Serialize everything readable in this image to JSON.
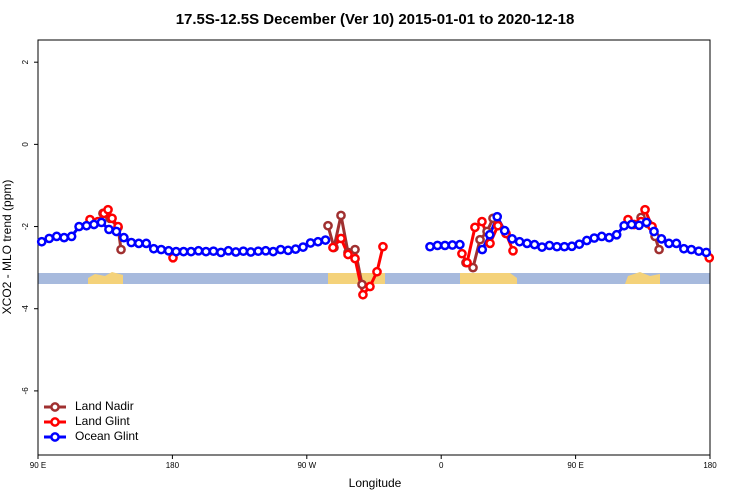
{
  "chart_data": {
    "type": "line",
    "title": "17.5S-12.5S December (Ver 10)   2015-01-01 to 2020-12-18",
    "xlabel": "Longitude",
    "ylabel": "XCO2 - MLO trend (ppm)",
    "xlim": [
      90,
      540
    ],
    "ylim": [
      -7.56,
      2.54
    ],
    "xticks": [
      {
        "value": 90,
        "label": "90 E"
      },
      {
        "value": 180,
        "label": "180"
      },
      {
        "value": 270,
        "label": "90 W"
      },
      {
        "value": 360,
        "label": "0"
      },
      {
        "value": 450,
        "label": "90 E"
      },
      {
        "value": 540,
        "label": "180"
      }
    ],
    "yticks": [
      2,
      0,
      -2,
      -4,
      -6
    ],
    "grid": false,
    "legend": "bottom-left",
    "series": [
      {
        "name": "Land Nadir",
        "color": "#a03030",
        "x": [
          133.5,
          138.2,
          143.6,
          145.6,
          null,
          284.2,
          288.2,
          292.9,
          297.6,
          302.3,
          307.0,
          null,
          376.6,
          381.3,
          386.0,
          390.7,
          394.7,
          null,
          493.8,
          498.5,
          503.2,
          505.9
        ],
        "values": [
          -1.68,
          -1.8,
          -2.02,
          -2.56,
          null,
          -1.98,
          -2.51,
          -1.73,
          -2.63,
          -2.56,
          -3.41,
          null,
          -2.88,
          -3.0,
          -2.32,
          -2.12,
          -1.8,
          null,
          -1.78,
          -1.93,
          -2.24,
          -2.56
        ]
      },
      {
        "name": "Land Glint",
        "color": "#ff0000",
        "x": [
          124.8,
          130.2,
          134.2,
          136.9,
          139.6,
          143.6,
          null,
          180.4,
          null,
          287.5,
          292.9,
          297.6,
          302.3,
          307.6,
          312.3,
          317.0,
          321.0,
          null,
          373.9,
          377.3,
          382.6,
          387.3,
          392.7,
          398.0,
          403.4,
          408.1,
          null,
          485.1,
          489.1,
          493.8,
          496.5,
          501.2,
          null,
          539.5
        ],
        "values": [
          -1.83,
          -1.88,
          -1.68,
          -1.59,
          -1.8,
          -2.0,
          null,
          -2.76,
          null,
          -2.51,
          -2.29,
          -2.68,
          -2.78,
          -3.66,
          -3.46,
          -3.1,
          -2.49,
          null,
          -2.66,
          -2.88,
          -2.02,
          -1.88,
          -2.41,
          -1.98,
          -2.17,
          -2.59,
          null,
          -1.83,
          -1.95,
          -1.88,
          -1.59,
          -2.0,
          null,
          -2.76
        ]
      },
      {
        "name": "Ocean Glint",
        "color": "#0000ff",
        "x": [
          92.5,
          97.5,
          102.5,
          107.5,
          112.5,
          117.5,
          122.5,
          127.5,
          132.5,
          137.5,
          142.5,
          147.5,
          152.5,
          157.5,
          162.5,
          167.5,
          172.5,
          177.5,
          182.5,
          187.5,
          192.5,
          197.5,
          202.5,
          207.5,
          212.5,
          217.5,
          222.5,
          227.5,
          232.5,
          237.5,
          242.5,
          247.5,
          252.5,
          257.5,
          262.5,
          267.5,
          272.5,
          277.5,
          282.5,
          null,
          352.5,
          357.5,
          362.5,
          367.5,
          372.5,
          null,
          387.5,
          392.5,
          397.5,
          402.5,
          407.5,
          412.5,
          417.5,
          422.5,
          427.5,
          432.5,
          437.5,
          442.5,
          447.5,
          452.5,
          457.5,
          462.5,
          467.5,
          472.5,
          477.5,
          482.5,
          487.5,
          492.5,
          497.5,
          502.5,
          507.5,
          512.5,
          517.5,
          522.5,
          527.5,
          532.5,
          537.5
        ],
        "values": [
          -2.37,
          -2.29,
          -2.24,
          -2.27,
          -2.24,
          -2.0,
          -1.98,
          -1.95,
          -1.9,
          -2.07,
          -2.12,
          -2.27,
          -2.39,
          -2.41,
          -2.41,
          -2.54,
          -2.56,
          -2.59,
          -2.61,
          -2.61,
          -2.61,
          -2.59,
          -2.61,
          -2.6,
          -2.63,
          -2.59,
          -2.62,
          -2.6,
          -2.62,
          -2.6,
          -2.59,
          -2.61,
          -2.56,
          -2.58,
          -2.55,
          -2.5,
          -2.4,
          -2.37,
          -2.33,
          null,
          -2.49,
          -2.46,
          -2.46,
          -2.45,
          -2.44,
          null,
          -2.56,
          -2.2,
          -1.76,
          -2.1,
          -2.3,
          -2.37,
          -2.41,
          -2.44,
          -2.5,
          -2.46,
          -2.49,
          -2.49,
          -2.48,
          -2.43,
          -2.34,
          -2.28,
          -2.24,
          -2.27,
          -2.2,
          -1.98,
          -1.95,
          -1.97,
          -1.9,
          -2.12,
          -2.3,
          -2.41,
          -2.41,
          -2.54,
          -2.56,
          -2.6,
          -2.63
        ]
      }
    ]
  }
}
